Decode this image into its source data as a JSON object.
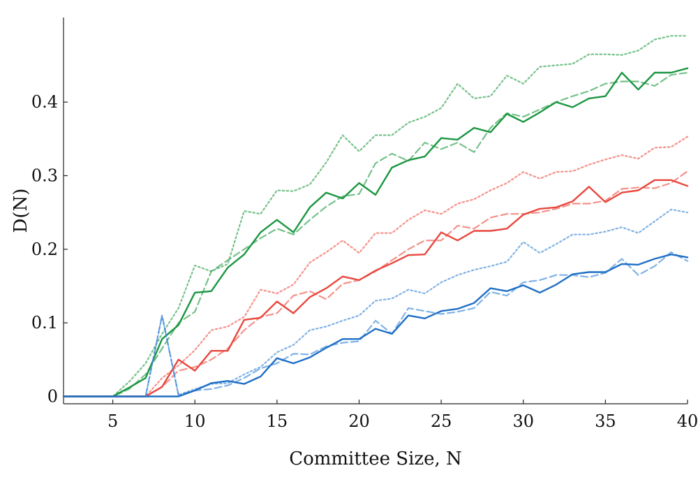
{
  "chart_data": {
    "type": "line",
    "title": "",
    "xlabel": "Committee Size, N",
    "ylabel": "D(N)",
    "xlim": [
      2,
      40
    ],
    "ylim": [
      -0.01,
      0.515
    ],
    "xticks": [
      5,
      10,
      15,
      20,
      25,
      30,
      35,
      40
    ],
    "xtick_labels": [
      "5",
      "10",
      "15",
      "20",
      "25",
      "30",
      "35",
      "40"
    ],
    "yticks": [
      0,
      0.1,
      0.2,
      0.3,
      0.4
    ],
    "ytick_labels": [
      "0",
      "0.1",
      "0.2",
      "0.3",
      "0.4"
    ],
    "grid": false,
    "legend": "none",
    "x": [
      2,
      3,
      4,
      5,
      6,
      7,
      8,
      9,
      10,
      11,
      12,
      13,
      14,
      15,
      16,
      17,
      18,
      19,
      20,
      21,
      22,
      23,
      24,
      25,
      26,
      27,
      28,
      29,
      30,
      31,
      32,
      33,
      34,
      35,
      36,
      37,
      38,
      39,
      40
    ],
    "series": [
      {
        "color": "#2ca04c",
        "style": "dotted",
        "opacity": 0.65,
        "values": [
          0,
          0,
          0,
          0,
          0.02,
          0.045,
          0.085,
          0.12,
          0.178,
          0.17,
          0.18,
          0.252,
          0.248,
          0.28,
          0.279,
          0.288,
          0.318,
          0.355,
          0.333,
          0.355,
          0.355,
          0.372,
          0.38,
          0.392,
          0.425,
          0.405,
          0.408,
          0.436,
          0.425,
          0.448,
          0.45,
          0.452,
          0.465,
          0.465,
          0.464,
          0.47,
          0.485,
          0.49,
          0.49
        ]
      },
      {
        "color": "#2ca04c",
        "style": "dashed",
        "opacity": 0.65,
        "values": [
          0,
          0,
          0,
          0,
          0.01,
          0.03,
          0.065,
          0.1,
          0.115,
          0.17,
          0.185,
          0.2,
          0.215,
          0.228,
          0.22,
          0.24,
          0.258,
          0.272,
          0.275,
          0.317,
          0.33,
          0.32,
          0.345,
          0.336,
          0.345,
          0.332,
          0.365,
          0.385,
          0.38,
          0.39,
          0.4,
          0.408,
          0.415,
          0.425,
          0.428,
          0.428,
          0.422,
          0.437,
          0.44
        ]
      },
      {
        "color": "#1a9641",
        "style": "solid",
        "opacity": 1,
        "values": [
          0,
          0,
          0,
          0,
          0.012,
          0.025,
          0.078,
          0.097,
          0.141,
          0.143,
          0.175,
          0.193,
          0.223,
          0.24,
          0.223,
          0.257,
          0.277,
          0.269,
          0.29,
          0.274,
          0.311,
          0.321,
          0.326,
          0.351,
          0.349,
          0.365,
          0.359,
          0.384,
          0.373,
          0.386,
          0.4,
          0.393,
          0.405,
          0.408,
          0.44,
          0.417,
          0.44,
          0.44,
          0.446
        ]
      },
      {
        "color": "#f0564a",
        "style": "dotted",
        "opacity": 0.65,
        "values": [
          0,
          0,
          0,
          0,
          0,
          0,
          0.025,
          0.042,
          0.063,
          0.09,
          0.095,
          0.108,
          0.145,
          0.14,
          0.152,
          0.182,
          0.196,
          0.212,
          0.195,
          0.222,
          0.222,
          0.24,
          0.253,
          0.248,
          0.262,
          0.268,
          0.28,
          0.29,
          0.305,
          0.296,
          0.305,
          0.306,
          0.315,
          0.322,
          0.328,
          0.323,
          0.338,
          0.339,
          0.353
        ]
      },
      {
        "color": "#f0564a",
        "style": "dashed",
        "opacity": 0.65,
        "values": [
          0,
          0,
          0,
          0,
          0,
          0,
          0.013,
          0.035,
          0.04,
          0.05,
          0.065,
          0.09,
          0.108,
          0.113,
          0.137,
          0.143,
          0.132,
          0.153,
          0.158,
          0.17,
          0.185,
          0.2,
          0.212,
          0.212,
          0.232,
          0.228,
          0.243,
          0.248,
          0.248,
          0.25,
          0.255,
          0.262,
          0.262,
          0.266,
          0.282,
          0.284,
          0.283,
          0.29,
          0.306
        ]
      },
      {
        "color": "#e8473d",
        "style": "solid",
        "opacity": 1,
        "values": [
          0,
          0,
          0,
          0,
          0,
          0,
          0.013,
          0.05,
          0.035,
          0.062,
          0.062,
          0.104,
          0.107,
          0.129,
          0.113,
          0.135,
          0.147,
          0.163,
          0.158,
          0.171,
          0.181,
          0.192,
          0.193,
          0.223,
          0.212,
          0.225,
          0.225,
          0.228,
          0.247,
          0.255,
          0.257,
          0.265,
          0.285,
          0.264,
          0.277,
          0.28,
          0.294,
          0.294,
          0.286
        ]
      },
      {
        "color": "#3b88d8",
        "style": "dotted",
        "opacity": 0.65,
        "values": [
          0,
          0,
          0,
          0,
          0,
          0,
          0.11,
          0.002,
          0.01,
          0.017,
          0.018,
          0.03,
          0.04,
          0.06,
          0.07,
          0.09,
          0.095,
          0.103,
          0.11,
          0.13,
          0.133,
          0.145,
          0.14,
          0.155,
          0.165,
          0.172,
          0.177,
          0.183,
          0.21,
          0.195,
          0.207,
          0.22,
          0.22,
          0.224,
          0.23,
          0.222,
          0.238,
          0.254,
          0.25
        ]
      },
      {
        "color": "#3b88d8",
        "style": "dashed",
        "opacity": 0.65,
        "values": [
          0,
          0,
          0,
          0,
          0,
          0,
          0.11,
          0.002,
          0.008,
          0.01,
          0.015,
          0.025,
          0.038,
          0.045,
          0.058,
          0.057,
          0.068,
          0.073,
          0.075,
          0.103,
          0.085,
          0.12,
          0.116,
          0.112,
          0.115,
          0.12,
          0.142,
          0.137,
          0.155,
          0.158,
          0.165,
          0.165,
          0.162,
          0.168,
          0.187,
          0.165,
          0.177,
          0.196,
          0.184
        ]
      },
      {
        "color": "#1f6fc5",
        "style": "solid",
        "opacity": 1,
        "values": [
          0,
          0,
          0,
          0,
          0,
          0,
          0,
          0,
          0.008,
          0.018,
          0.021,
          0.017,
          0.027,
          0.052,
          0.045,
          0.053,
          0.066,
          0.078,
          0.078,
          0.092,
          0.085,
          0.11,
          0.106,
          0.116,
          0.119,
          0.127,
          0.147,
          0.143,
          0.151,
          0.141,
          0.152,
          0.166,
          0.169,
          0.169,
          0.18,
          0.179,
          0.187,
          0.193,
          0.189
        ]
      }
    ]
  }
}
